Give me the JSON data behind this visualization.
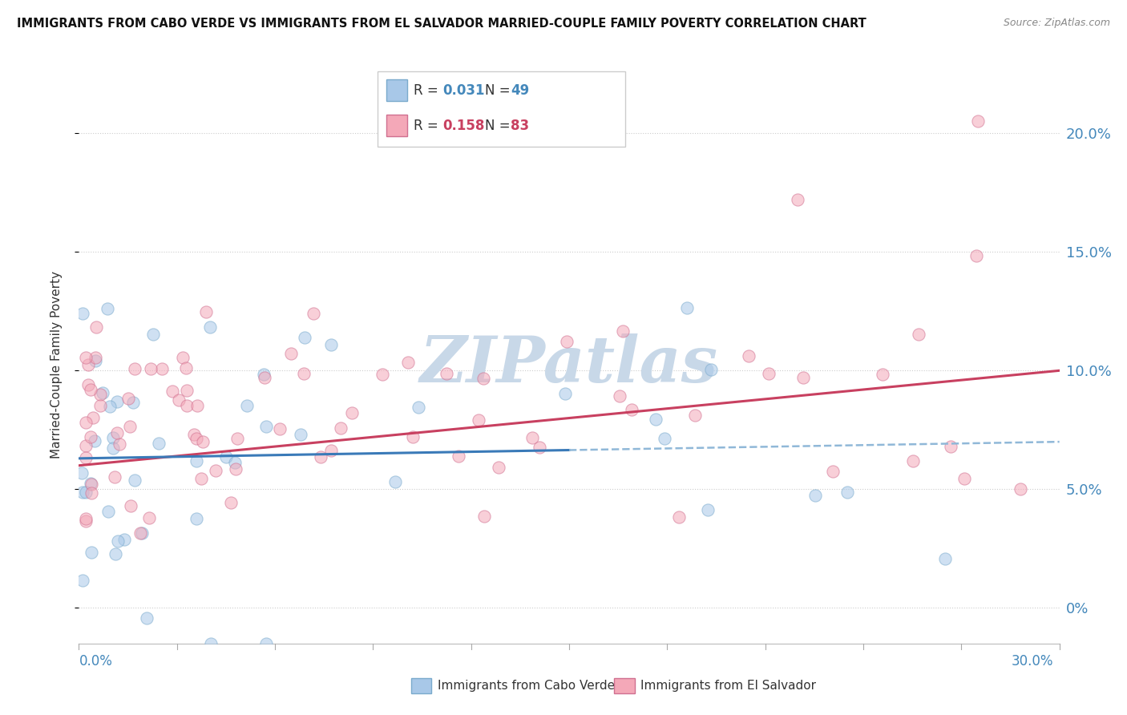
{
  "title": "IMMIGRANTS FROM CABO VERDE VS IMMIGRANTS FROM EL SALVADOR MARRIED-COUPLE FAMILY POVERTY CORRELATION CHART",
  "source": "Source: ZipAtlas.com",
  "ylabel": "Married-Couple Family Poverty",
  "xlim": [
    0,
    30
  ],
  "ylim": [
    -1.5,
    22
  ],
  "ytick_vals": [
    0,
    5,
    10,
    15,
    20
  ],
  "ytick_labels": [
    "0%",
    "5.0%",
    "10.0%",
    "15.0%",
    "20.0%"
  ],
  "cabo_verde_color": "#a8c8e8",
  "cabo_verde_edge": "#7aaacc",
  "el_salvador_color": "#f4a8b8",
  "el_salvador_edge": "#d07090",
  "cabo_verde_line_color": "#3a7ab8",
  "el_salvador_line_color": "#c84060",
  "dashed_line_color": "#90b8d8",
  "watermark_color": "#c8d8e8",
  "cabo_verde_N": 49,
  "el_salvador_N": 83,
  "cabo_verde_R": 0.031,
  "el_salvador_R": 0.158,
  "marker_size": 120,
  "marker_alpha": 0.55,
  "cv_trend_start_y": 6.3,
  "cv_trend_end_y": 7.0,
  "es_trend_start_y": 6.0,
  "es_trend_end_y": 10.0
}
